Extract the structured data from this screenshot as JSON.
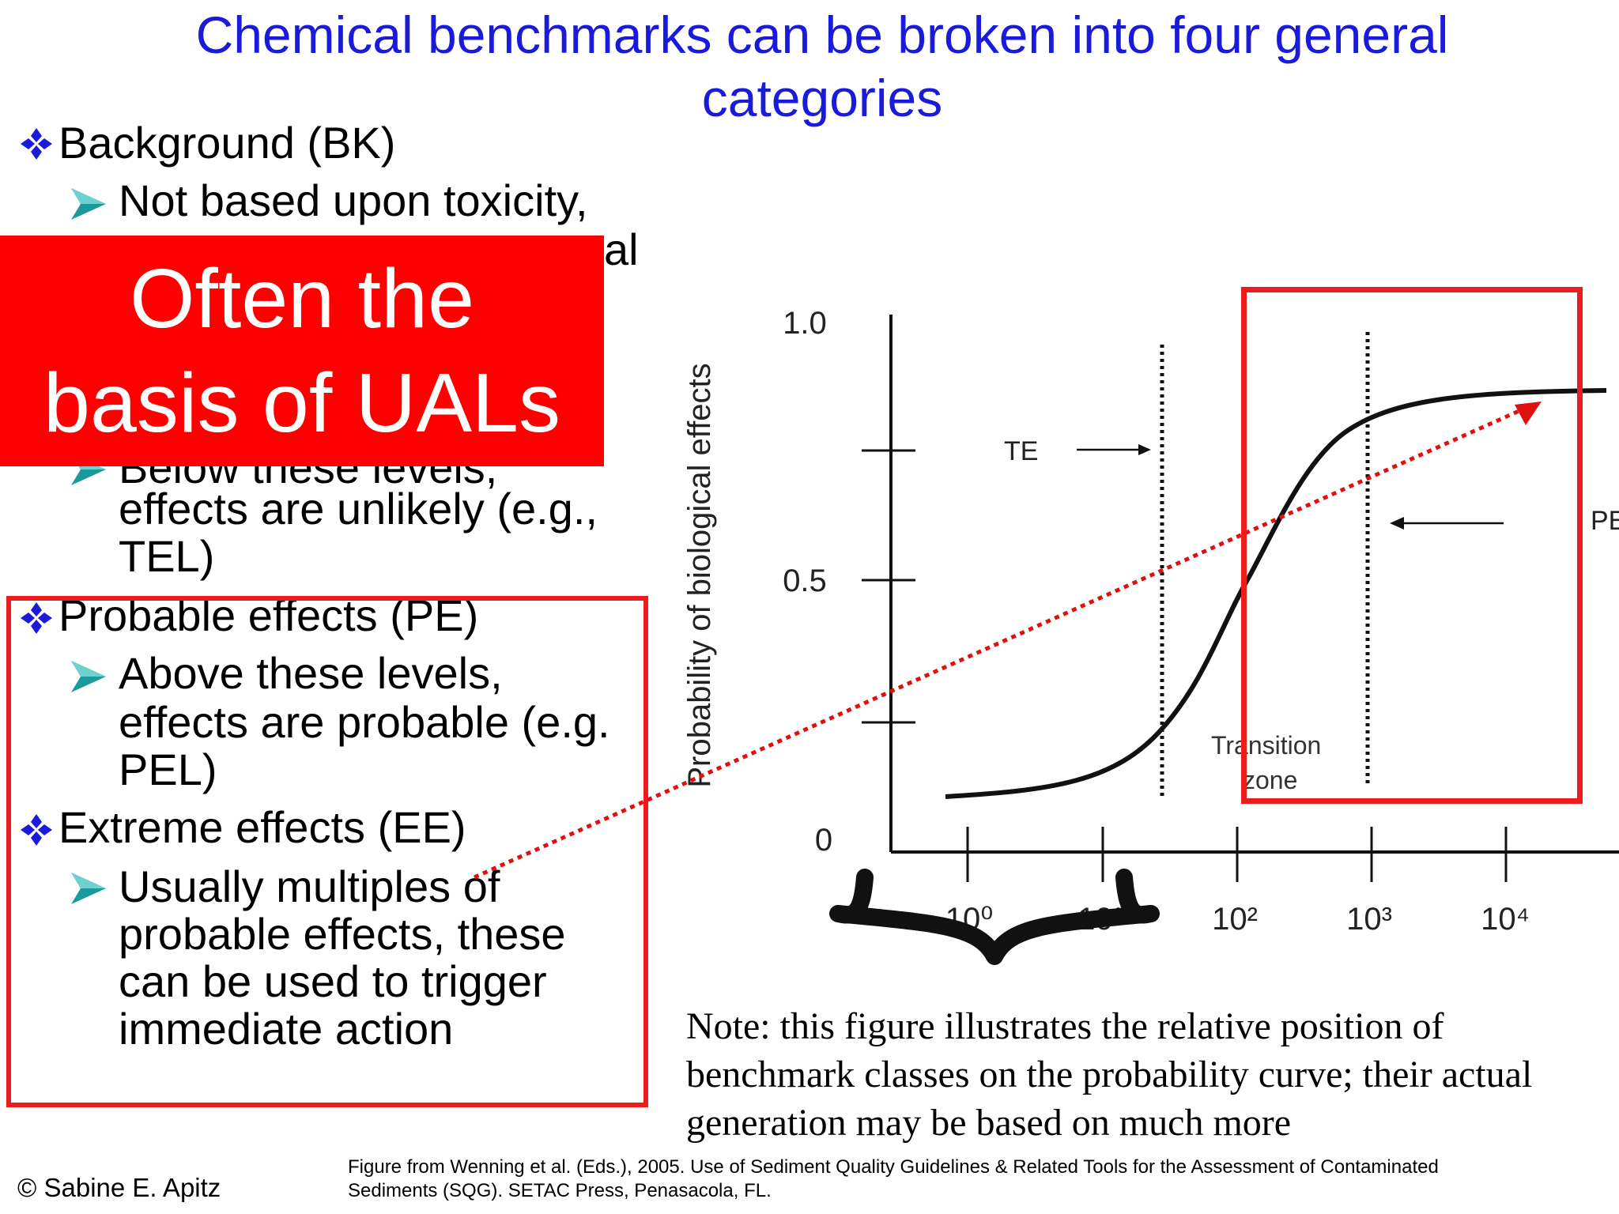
{
  "slide": {
    "title": "Chemical benchmarks can be broken into four general categories",
    "callout": {
      "line1": "Often the",
      "line2": "basis of UALs"
    },
    "bullets": [
      {
        "label": "Background (BK)",
        "sub": [
          "Not based upon toxicity,",
          "al"
        ]
      },
      {
        "label": "",
        "sub": [
          "Below these levels,",
          "effects are unlikely (e.g.,",
          "TEL)"
        ]
      },
      {
        "label": "Probable effects (PE)",
        "sub": [
          "Above these levels,",
          "effects are probable (e.g.",
          "PEL)"
        ]
      },
      {
        "label": "Extreme effects (EE)",
        "sub": [
          "Usually multiples of",
          "probable effects, these",
          "can be used to trigger",
          "immediate action"
        ]
      }
    ],
    "figure": {
      "y_axis_label": "Probability of biological effects",
      "y_ticks": [
        "1.0",
        "0.5",
        "0"
      ],
      "x_ticks": [
        "10⁰",
        "10¹",
        "10²",
        "10³",
        "10⁴"
      ],
      "te_label": "TE",
      "pe_label": "PE",
      "transition_line1": "Transition",
      "transition_line2": "zone"
    },
    "note": [
      "Note: this figure illustrates the relative position of",
      "benchmark classes on the probability curve; their actual",
      "generation may be based on much more"
    ],
    "copyright": "© Sabine E. Apitz",
    "citation": [
      "Figure from Wenning et al. (Eds.), 2005. Use of Sediment Quality Guidelines & Related Tools for the Assessment of Contaminated",
      "Sediments (SQG). SETAC Press, Penasacola, FL."
    ],
    "colors": {
      "title": "#1a1adb",
      "callout_bg": "#ff0000",
      "highlight_box": "#ee1c1c",
      "bullet_diamond": "#1a1adb",
      "sub_arrow": "#1a9a9a"
    }
  }
}
